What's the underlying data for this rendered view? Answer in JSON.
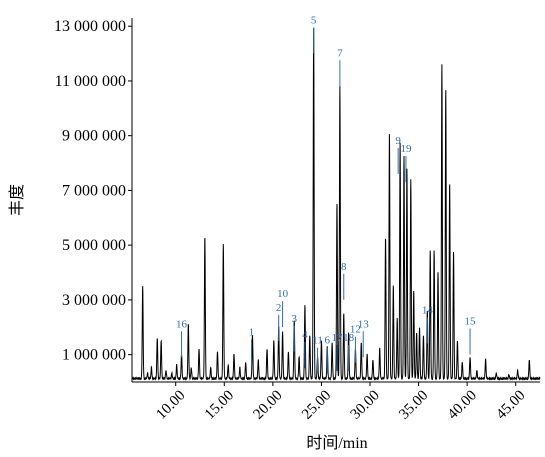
{
  "chart_data": {
    "type": "line",
    "xlabel": "时间/min",
    "ylabel": "丰度",
    "xlim": [
      5.5,
      47.5
    ],
    "ylim": [
      0,
      13300000
    ],
    "x_ticks": [
      10,
      15,
      20,
      25,
      30,
      35,
      40,
      45
    ],
    "x_tick_labels": [
      "10.00",
      "15.00",
      "20.00",
      "25.00",
      "30.00",
      "35.00",
      "40.00",
      "45.00"
    ],
    "y_ticks": [
      1000000,
      3000000,
      5000000,
      7000000,
      9000000,
      11000000,
      13000000
    ],
    "y_tick_labels": [
      "1 000 000",
      "3 000 000",
      "5 000 000",
      "7 000 000",
      "9 000 000",
      "11 000 000",
      "13 000 000"
    ],
    "baseline": 100000,
    "series": [
      {
        "peaks": [
          {
            "x": 6.6,
            "y": 3500000
          },
          {
            "x": 7.1,
            "y": 300000
          },
          {
            "x": 7.5,
            "y": 500000
          },
          {
            "x": 8.1,
            "y": 1600000
          },
          {
            "x": 8.5,
            "y": 1500000
          },
          {
            "x": 9.0,
            "y": 400000
          },
          {
            "x": 9.6,
            "y": 300000
          },
          {
            "x": 10.1,
            "y": 600000
          },
          {
            "x": 10.6,
            "y": 1000000
          },
          {
            "x": 11.3,
            "y": 2100000
          },
          {
            "x": 11.6,
            "y": 500000
          },
          {
            "x": 12.4,
            "y": 1200000
          },
          {
            "x": 13.0,
            "y": 5300000
          },
          {
            "x": 13.6,
            "y": 500000
          },
          {
            "x": 14.3,
            "y": 1100000
          },
          {
            "x": 14.9,
            "y": 5000000
          },
          {
            "x": 15.4,
            "y": 600000
          },
          {
            "x": 16.0,
            "y": 1000000
          },
          {
            "x": 16.6,
            "y": 500000
          },
          {
            "x": 17.2,
            "y": 700000
          },
          {
            "x": 17.9,
            "y": 1700000
          },
          {
            "x": 18.5,
            "y": 800000
          },
          {
            "x": 19.4,
            "y": 1200000
          },
          {
            "x": 20.1,
            "y": 1500000
          },
          {
            "x": 20.6,
            "y": 2000000
          },
          {
            "x": 21.0,
            "y": 1800000
          },
          {
            "x": 21.6,
            "y": 1100000
          },
          {
            "x": 22.2,
            "y": 2200000
          },
          {
            "x": 22.7,
            "y": 900000
          },
          {
            "x": 23.3,
            "y": 2800000
          },
          {
            "x": 23.8,
            "y": 1700000
          },
          {
            "x": 24.2,
            "y": 13100000
          },
          {
            "x": 24.6,
            "y": 900000
          },
          {
            "x": 25.0,
            "y": 1500000
          },
          {
            "x": 25.6,
            "y": 1300000
          },
          {
            "x": 26.1,
            "y": 1400000
          },
          {
            "x": 26.6,
            "y": 6500000
          },
          {
            "x": 26.9,
            "y": 10800000
          },
          {
            "x": 27.3,
            "y": 2500000
          },
          {
            "x": 27.8,
            "y": 1800000
          },
          {
            "x": 28.5,
            "y": 1200000
          },
          {
            "x": 29.1,
            "y": 1400000
          },
          {
            "x": 29.7,
            "y": 1000000
          },
          {
            "x": 30.3,
            "y": 800000
          },
          {
            "x": 31.0,
            "y": 1200000
          },
          {
            "x": 31.6,
            "y": 5300000
          },
          {
            "x": 32.0,
            "y": 9100000
          },
          {
            "x": 32.4,
            "y": 3500000
          },
          {
            "x": 32.8,
            "y": 2300000
          },
          {
            "x": 33.1,
            "y": 8700000
          },
          {
            "x": 33.5,
            "y": 8200000
          },
          {
            "x": 33.8,
            "y": 7800000
          },
          {
            "x": 34.2,
            "y": 7400000
          },
          {
            "x": 34.5,
            "y": 3300000
          },
          {
            "x": 34.8,
            "y": 1800000
          },
          {
            "x": 35.1,
            "y": 2000000
          },
          {
            "x": 35.5,
            "y": 1700000
          },
          {
            "x": 35.9,
            "y": 2600000
          },
          {
            "x": 36.2,
            "y": 4800000
          },
          {
            "x": 36.6,
            "y": 4800000
          },
          {
            "x": 37.0,
            "y": 4000000
          },
          {
            "x": 37.4,
            "y": 11600000
          },
          {
            "x": 37.8,
            "y": 10700000
          },
          {
            "x": 38.2,
            "y": 7300000
          },
          {
            "x": 38.6,
            "y": 4800000
          },
          {
            "x": 39.0,
            "y": 1500000
          },
          {
            "x": 39.5,
            "y": 700000
          },
          {
            "x": 40.3,
            "y": 900000
          },
          {
            "x": 41.0,
            "y": 400000
          },
          {
            "x": 41.9,
            "y": 800000
          },
          {
            "x": 43.0,
            "y": 300000
          },
          {
            "x": 44.3,
            "y": 250000
          },
          {
            "x": 45.2,
            "y": 400000
          },
          {
            "x": 46.4,
            "y": 800000
          }
        ]
      }
    ],
    "annotations": [
      {
        "text": "1",
        "x": 17.8,
        "y": 1700000
      },
      {
        "text": "2",
        "x": 20.6,
        "y": 2600000
      },
      {
        "text": "3",
        "x": 22.2,
        "y": 2200000
      },
      {
        "text": "4",
        "x": 23.3,
        "y": 1600000
      },
      {
        "text": "5",
        "x": 24.2,
        "y": 13100000
      },
      {
        "text": "6",
        "x": 25.6,
        "y": 1400000
      },
      {
        "text": "7",
        "x": 26.9,
        "y": 11900000
      },
      {
        "text": "8",
        "x": 27.3,
        "y": 4100000
      },
      {
        "text": "9",
        "x": 32.9,
        "y": 8700000
      },
      {
        "text": "10",
        "x": 21.0,
        "y": 3100000
      },
      {
        "text": "11",
        "x": 24.6,
        "y": 1400000
      },
      {
        "text": "12",
        "x": 28.5,
        "y": 1800000
      },
      {
        "text": "13",
        "x": 29.3,
        "y": 2000000
      },
      {
        "text": "14",
        "x": 35.9,
        "y": 2500000
      },
      {
        "text": "15",
        "x": 40.3,
        "y": 2100000
      },
      {
        "text": "16",
        "x": 10.6,
        "y": 2000000
      },
      {
        "text": "17",
        "x": 26.6,
        "y": 1500000
      },
      {
        "text": "18",
        "x": 27.8,
        "y": 1500000
      },
      {
        "text": "19",
        "x": 33.7,
        "y": 8400000
      }
    ]
  },
  "colors": {
    "trace": "#000000",
    "annotation": "#2e6db4",
    "axis": "#000000"
  }
}
